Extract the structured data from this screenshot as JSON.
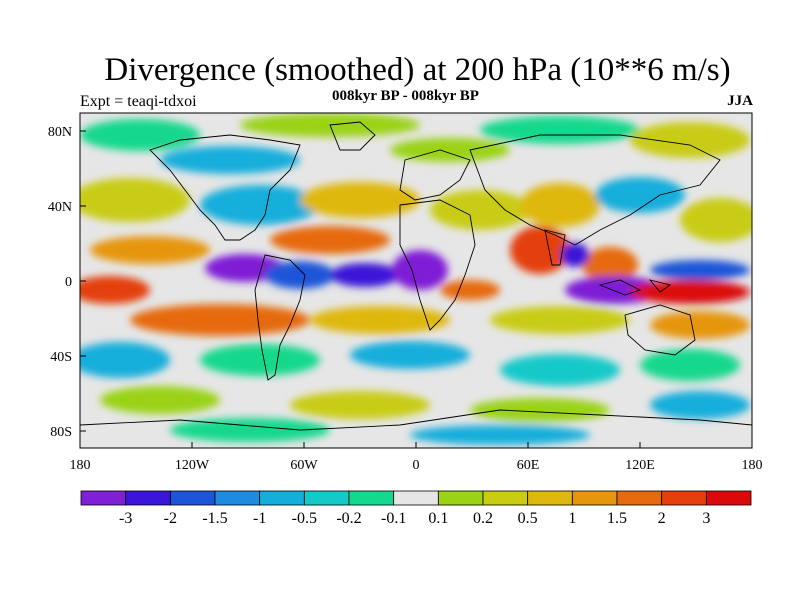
{
  "title": "Divergence (smoothed) at 200 hPa (10**6 m/s)",
  "experiment": "Expt = teaqi-tdxoi",
  "period": "008kyr BP - 008kyr BP",
  "season": "JJA",
  "y_ticks": [
    "80N",
    "40N",
    "0",
    "40S",
    "80S"
  ],
  "x_ticks": [
    "180",
    "120W",
    "60W",
    "0",
    "60E",
    "120E",
    "180"
  ],
  "colorbar": {
    "colors": [
      "#7f1fd6",
      "#3a17d8",
      "#1d55d8",
      "#1f8be0",
      "#14aedb",
      "#15c9c9",
      "#13d88d",
      "#e6e6e6",
      "#9ad315",
      "#c9cc12",
      "#dfb80f",
      "#e6960d",
      "#e66a0c",
      "#e4400b",
      "#db0a0a"
    ],
    "labels": [
      "-3",
      "-2",
      "-1.5",
      "-1",
      "-0.5",
      "-0.2",
      "-0.1",
      "0.1",
      "0.2",
      "0.5",
      "1",
      "1.5",
      "2",
      "3"
    ]
  }
}
